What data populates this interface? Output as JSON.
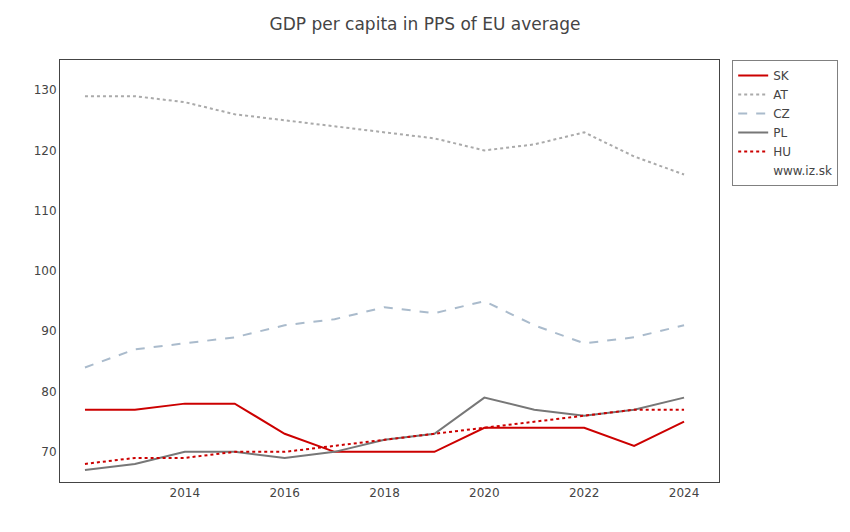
{
  "chart_data": {
    "type": "line",
    "title": "GDP per capita in PPS of EU average",
    "x": [
      2012,
      2013,
      2014,
      2015,
      2016,
      2017,
      2018,
      2019,
      2020,
      2021,
      2022,
      2023,
      2024
    ],
    "series": [
      {
        "name": "SK",
        "color": "#cc0000",
        "line_style": "solid",
        "values": [
          77,
          77,
          78,
          78,
          73,
          70,
          70,
          70,
          74,
          74,
          74,
          71,
          75
        ]
      },
      {
        "name": "AT",
        "color": "#aaaaaa",
        "line_style": "dotted",
        "values": [
          129,
          129,
          128,
          126,
          125,
          124,
          123,
          122,
          120,
          121,
          123,
          119,
          116
        ]
      },
      {
        "name": "CZ",
        "color": "#aabbcc",
        "line_style": "dashed",
        "values": [
          84,
          87,
          88,
          89,
          91,
          92,
          94,
          93,
          95,
          91,
          88,
          89,
          91
        ]
      },
      {
        "name": "PL",
        "color": "#777777",
        "line_style": "solid",
        "values": [
          67,
          68,
          70,
          70,
          69,
          70,
          72,
          73,
          79,
          77,
          76,
          77,
          79
        ]
      },
      {
        "name": "HU",
        "color": "#cc0000",
        "line_style": "dotted",
        "values": [
          68,
          69,
          69,
          70,
          70,
          71,
          72,
          73,
          74,
          75,
          76,
          77,
          77
        ]
      }
    ],
    "annotations": [
      "www.iz.sk"
    ],
    "xlim": [
      2011.5,
      2024.7
    ],
    "xticks": [
      2014,
      2016,
      2018,
      2020,
      2022,
      2024
    ],
    "ylim": [
      65,
      135
    ],
    "yticks": [
      70,
      80,
      90,
      100,
      110,
      120,
      130
    ],
    "grid": false,
    "legend": "right"
  }
}
